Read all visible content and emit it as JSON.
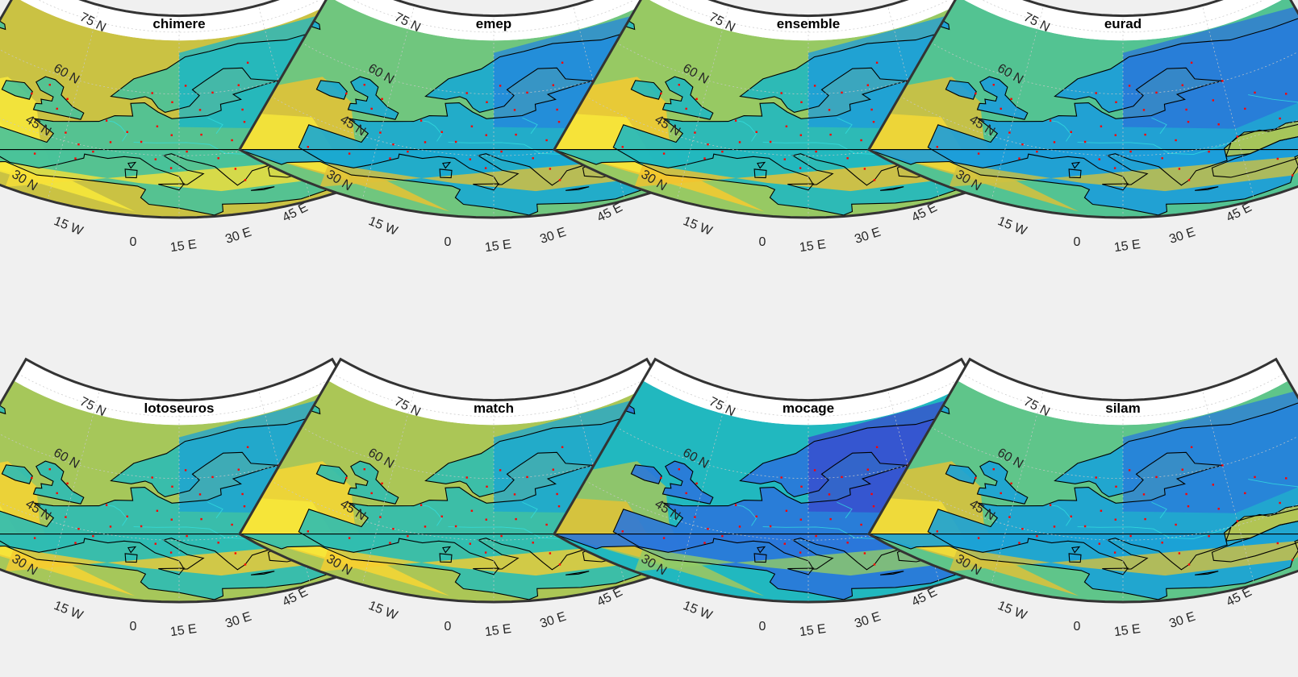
{
  "colors": {
    "background": "#f0f0f0",
    "land_outline": "#000000",
    "rivers": "#33e0e0",
    "station_marker": "#ff0000",
    "frame": "#333333",
    "gridline": "#c8c8c8",
    "ocean_pole_cap": "#ffffff",
    "colormap": [
      "#3e3ec9",
      "#2f6bd8",
      "#1d95e0",
      "#17b5c8",
      "#48c29a",
      "#8fca68",
      "#cfc140",
      "#f5c22c",
      "#f9e93a"
    ]
  },
  "axis_labels": {
    "lat": [
      "30 N",
      "45 N",
      "60 N",
      "75 N"
    ],
    "lon": [
      "15 W",
      "0",
      "15 E",
      "30 E",
      "45 E"
    ]
  },
  "panels": [
    {
      "title": "chimere",
      "level": 0.62
    },
    {
      "title": "emep",
      "level": 0.45
    },
    {
      "title": "ensemble",
      "level": 0.52
    },
    {
      "title": "eurad",
      "level": 0.4
    },
    {
      "title": "lotoseuros",
      "level": 0.55
    },
    {
      "title": "match",
      "level": 0.56
    },
    {
      "title": "mocage",
      "level": 0.28
    },
    {
      "title": "silam",
      "level": 0.42
    }
  ]
}
